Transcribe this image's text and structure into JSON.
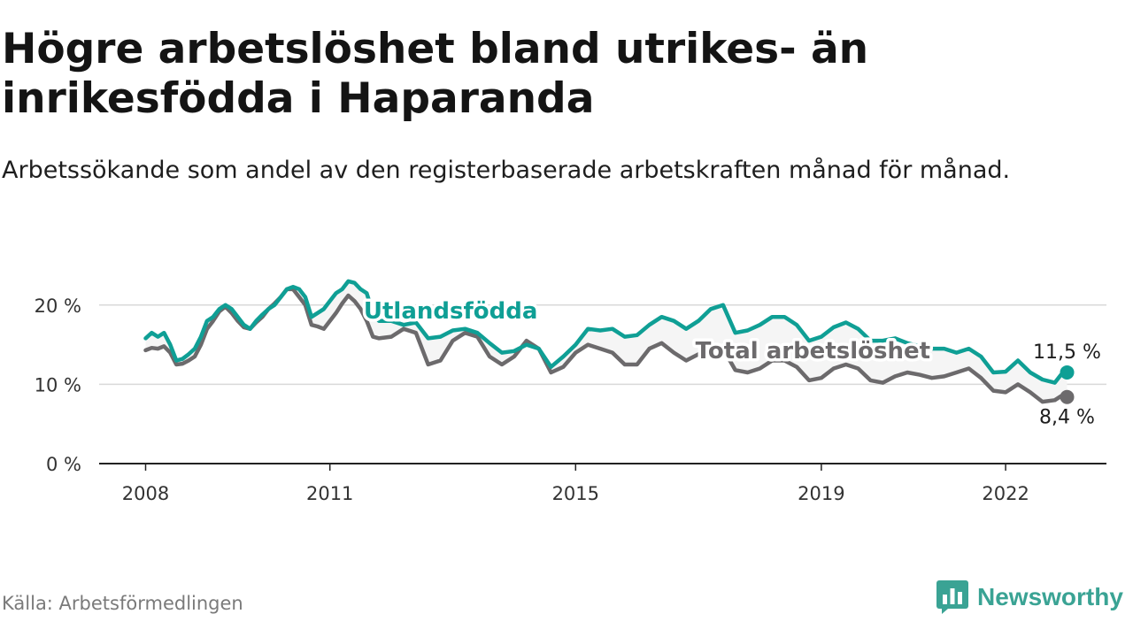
{
  "title": "Högre arbetslöshet bland utrikes- än inrikesfödda i Haparanda",
  "subtitle": "Arbetssökande som andel av den registerbaserade arbetskraften månad för månad.",
  "source": "Källa: Arbetsförmedlingen",
  "brand": {
    "name": "Newsworthy",
    "icon": "newsworthy-logo-icon",
    "color": "#3aa394"
  },
  "colors": {
    "foreign": "#0f9f95",
    "total": "#6c6a6c",
    "axis": "#222222",
    "grid": "#d9d9d9",
    "fill": "#f5f5f5"
  },
  "chart_data": {
    "type": "line",
    "title": "Högre arbetslöshet bland utrikes- än inrikesfödda i Haparanda",
    "xlabel": "",
    "ylabel": "",
    "ylim": [
      0,
      25
    ],
    "xlim": [
      2007.5,
      2023.0
    ],
    "yticks": [
      0,
      10,
      20
    ],
    "ytick_labels": [
      "0 %",
      "10 %",
      "20 %"
    ],
    "xticks": [
      2008,
      2011,
      2015,
      2019,
      2022
    ],
    "xtick_labels": [
      "2008",
      "2011",
      "2015",
      "2019",
      "2022"
    ],
    "grid": true,
    "series": [
      {
        "name": "Utlandsfödda",
        "color": "#0f9f95",
        "end_label": "11,5 %",
        "points": [
          [
            2008.0,
            15.8
          ],
          [
            2008.1,
            16.5
          ],
          [
            2008.2,
            16.0
          ],
          [
            2008.3,
            16.5
          ],
          [
            2008.4,
            15.0
          ],
          [
            2008.5,
            13.0
          ],
          [
            2008.6,
            13.2
          ],
          [
            2008.7,
            13.8
          ],
          [
            2008.8,
            14.5
          ],
          [
            2008.9,
            16.0
          ],
          [
            2009.0,
            18.0
          ],
          [
            2009.1,
            18.5
          ],
          [
            2009.2,
            19.5
          ],
          [
            2009.3,
            20.0
          ],
          [
            2009.4,
            19.5
          ],
          [
            2009.5,
            18.5
          ],
          [
            2009.6,
            17.5
          ],
          [
            2009.7,
            17.0
          ],
          [
            2009.8,
            18.0
          ],
          [
            2009.9,
            18.8
          ],
          [
            2010.0,
            19.5
          ],
          [
            2010.1,
            20.0
          ],
          [
            2010.2,
            21.0
          ],
          [
            2010.3,
            22.0
          ],
          [
            2010.4,
            22.3
          ],
          [
            2010.5,
            22.0
          ],
          [
            2010.6,
            21.0
          ],
          [
            2010.7,
            18.5
          ],
          [
            2010.8,
            19.0
          ],
          [
            2010.9,
            19.5
          ],
          [
            2011.0,
            20.5
          ],
          [
            2011.1,
            21.5
          ],
          [
            2011.2,
            22.0
          ],
          [
            2011.3,
            23.0
          ],
          [
            2011.4,
            22.8
          ],
          [
            2011.5,
            22.0
          ],
          [
            2011.6,
            21.5
          ],
          [
            2011.7,
            19.0
          ],
          [
            2011.8,
            18.0
          ],
          [
            2012.0,
            18.0
          ],
          [
            2012.2,
            17.5
          ],
          [
            2012.4,
            17.8
          ],
          [
            2012.6,
            15.8
          ],
          [
            2012.8,
            16.0
          ],
          [
            2013.0,
            16.8
          ],
          [
            2013.2,
            17.0
          ],
          [
            2013.4,
            16.5
          ],
          [
            2013.6,
            15.2
          ],
          [
            2013.8,
            14.0
          ],
          [
            2014.0,
            14.2
          ],
          [
            2014.2,
            15.0
          ],
          [
            2014.4,
            14.5
          ],
          [
            2014.6,
            12.2
          ],
          [
            2014.8,
            13.5
          ],
          [
            2015.0,
            15.0
          ],
          [
            2015.2,
            17.0
          ],
          [
            2015.4,
            16.8
          ],
          [
            2015.6,
            17.0
          ],
          [
            2015.8,
            16.0
          ],
          [
            2016.0,
            16.2
          ],
          [
            2016.2,
            17.5
          ],
          [
            2016.4,
            18.5
          ],
          [
            2016.6,
            18.0
          ],
          [
            2016.8,
            17.0
          ],
          [
            2017.0,
            18.0
          ],
          [
            2017.2,
            19.5
          ],
          [
            2017.4,
            20.0
          ],
          [
            2017.6,
            16.5
          ],
          [
            2017.8,
            16.8
          ],
          [
            2018.0,
            17.5
          ],
          [
            2018.2,
            18.5
          ],
          [
            2018.4,
            18.5
          ],
          [
            2018.6,
            17.5
          ],
          [
            2018.8,
            15.5
          ],
          [
            2019.0,
            16.0
          ],
          [
            2019.2,
            17.2
          ],
          [
            2019.4,
            17.8
          ],
          [
            2019.6,
            17.0
          ],
          [
            2019.8,
            15.5
          ],
          [
            2020.0,
            15.5
          ],
          [
            2020.2,
            15.8
          ],
          [
            2020.4,
            15.2
          ],
          [
            2020.6,
            14.8
          ],
          [
            2020.8,
            14.5
          ],
          [
            2021.0,
            14.5
          ],
          [
            2021.2,
            14.0
          ],
          [
            2021.4,
            14.5
          ],
          [
            2021.6,
            13.5
          ],
          [
            2021.8,
            11.5
          ],
          [
            2022.0,
            11.6
          ],
          [
            2022.2,
            13.0
          ],
          [
            2022.4,
            11.5
          ],
          [
            2022.6,
            10.6
          ],
          [
            2022.8,
            10.2
          ],
          [
            2022.9,
            11.2
          ],
          [
            2023.0,
            11.5
          ]
        ]
      },
      {
        "name": "Total arbetslöshet",
        "color": "#6c6a6c",
        "end_label": "8,4 %",
        "points": [
          [
            2008.0,
            14.3
          ],
          [
            2008.1,
            14.6
          ],
          [
            2008.2,
            14.5
          ],
          [
            2008.3,
            14.8
          ],
          [
            2008.4,
            14.0
          ],
          [
            2008.5,
            12.5
          ],
          [
            2008.6,
            12.6
          ],
          [
            2008.7,
            13.0
          ],
          [
            2008.8,
            13.5
          ],
          [
            2008.9,
            15.0
          ],
          [
            2009.0,
            17.0
          ],
          [
            2009.1,
            18.0
          ],
          [
            2009.2,
            19.2
          ],
          [
            2009.3,
            19.8
          ],
          [
            2009.4,
            19.0
          ],
          [
            2009.5,
            18.0
          ],
          [
            2009.6,
            17.2
          ],
          [
            2009.7,
            17.0
          ],
          [
            2009.8,
            17.8
          ],
          [
            2009.9,
            18.5
          ],
          [
            2010.0,
            19.5
          ],
          [
            2010.1,
            20.2
          ],
          [
            2010.2,
            21.0
          ],
          [
            2010.3,
            22.0
          ],
          [
            2010.4,
            22.0
          ],
          [
            2010.5,
            21.0
          ],
          [
            2010.6,
            20.0
          ],
          [
            2010.7,
            17.5
          ],
          [
            2010.8,
            17.3
          ],
          [
            2010.9,
            17.0
          ],
          [
            2011.0,
            18.0
          ],
          [
            2011.1,
            19.0
          ],
          [
            2011.2,
            20.2
          ],
          [
            2011.3,
            21.2
          ],
          [
            2011.4,
            20.5
          ],
          [
            2011.5,
            19.5
          ],
          [
            2011.6,
            18.0
          ],
          [
            2011.7,
            16.0
          ],
          [
            2011.8,
            15.8
          ],
          [
            2012.0,
            16.0
          ],
          [
            2012.2,
            17.0
          ],
          [
            2012.4,
            16.5
          ],
          [
            2012.6,
            12.5
          ],
          [
            2012.8,
            13.0
          ],
          [
            2013.0,
            15.5
          ],
          [
            2013.2,
            16.5
          ],
          [
            2013.4,
            16.0
          ],
          [
            2013.6,
            13.5
          ],
          [
            2013.8,
            12.5
          ],
          [
            2014.0,
            13.5
          ],
          [
            2014.2,
            15.5
          ],
          [
            2014.4,
            14.5
          ],
          [
            2014.6,
            11.5
          ],
          [
            2014.8,
            12.2
          ],
          [
            2015.0,
            14.0
          ],
          [
            2015.2,
            15.0
          ],
          [
            2015.4,
            14.5
          ],
          [
            2015.6,
            14.0
          ],
          [
            2015.8,
            12.5
          ],
          [
            2016.0,
            12.5
          ],
          [
            2016.2,
            14.5
          ],
          [
            2016.4,
            15.2
          ],
          [
            2016.6,
            14.0
          ],
          [
            2016.8,
            13.0
          ],
          [
            2017.0,
            13.8
          ],
          [
            2017.2,
            15.0
          ],
          [
            2017.4,
            14.5
          ],
          [
            2017.6,
            11.8
          ],
          [
            2017.8,
            11.5
          ],
          [
            2018.0,
            12.0
          ],
          [
            2018.2,
            13.0
          ],
          [
            2018.4,
            13.0
          ],
          [
            2018.6,
            12.2
          ],
          [
            2018.8,
            10.5
          ],
          [
            2019.0,
            10.8
          ],
          [
            2019.2,
            12.0
          ],
          [
            2019.4,
            12.5
          ],
          [
            2019.6,
            12.0
          ],
          [
            2019.8,
            10.5
          ],
          [
            2020.0,
            10.2
          ],
          [
            2020.2,
            11.0
          ],
          [
            2020.4,
            11.5
          ],
          [
            2020.6,
            11.2
          ],
          [
            2020.8,
            10.8
          ],
          [
            2021.0,
            11.0
          ],
          [
            2021.2,
            11.5
          ],
          [
            2021.4,
            12.0
          ],
          [
            2021.6,
            10.8
          ],
          [
            2021.8,
            9.2
          ],
          [
            2022.0,
            9.0
          ],
          [
            2022.2,
            10.0
          ],
          [
            2022.4,
            9.0
          ],
          [
            2022.6,
            7.8
          ],
          [
            2022.8,
            8.0
          ],
          [
            2022.9,
            8.5
          ],
          [
            2023.0,
            8.4
          ]
        ]
      }
    ],
    "annotations": [
      {
        "text": "Utlandsfödda",
        "series": 0,
        "anchor_x": 2011.55,
        "anchor_y": 18.3
      },
      {
        "text": "Total arbetslöshet",
        "series": 1,
        "anchor_x": 2016.95,
        "anchor_y": 13.3
      }
    ]
  }
}
